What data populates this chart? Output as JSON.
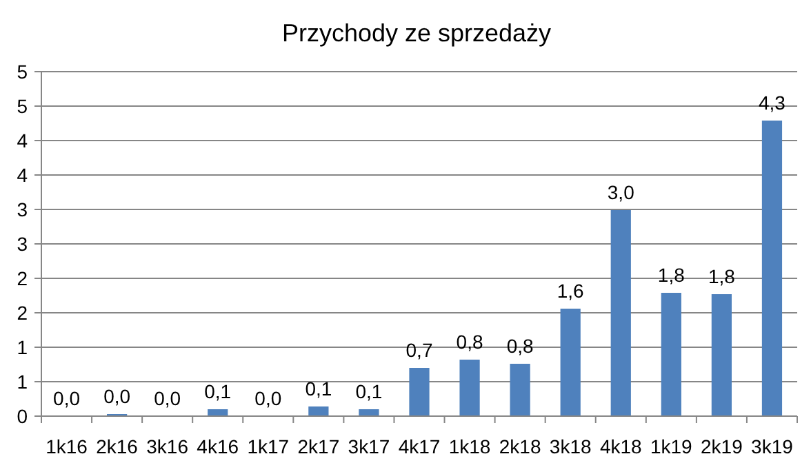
{
  "chart_data": {
    "type": "bar",
    "title": "Przychody ze sprzedaży",
    "categories": [
      "1k16",
      "2k16",
      "3k16",
      "4k16",
      "1k17",
      "2k17",
      "3k17",
      "4k17",
      "1k18",
      "2k18",
      "3k18",
      "4k18",
      "1k19",
      "2k19",
      "3k19"
    ],
    "values": [
      0,
      0.03,
      0,
      0.1,
      0,
      0.14,
      0.1,
      0.7,
      0.82,
      0.76,
      1.56,
      2.99,
      1.79,
      1.77,
      4.29
    ],
    "value_labels": [
      "0,0",
      "0,0",
      "0,0",
      "0,1",
      "0,0",
      "0,1",
      "0,1",
      "0,7",
      "0,8",
      "0,8",
      "1,6",
      "3,0",
      "1,8",
      "1,8",
      "4,3"
    ],
    "color": "#4f81bd",
    "ylim": [
      0,
      5
    ],
    "yticks": [
      0,
      {
        "value": 0.5,
        "label": "1"
      },
      1,
      {
        "value": 1.5,
        "label": "2"
      },
      2,
      {
        "value": 2.5,
        "label": "3"
      },
      3,
      {
        "value": 3.5,
        "label": "4"
      },
      4,
      {
        "value": 4.5,
        "label": "5"
      },
      5
    ],
    "grid": "y"
  }
}
